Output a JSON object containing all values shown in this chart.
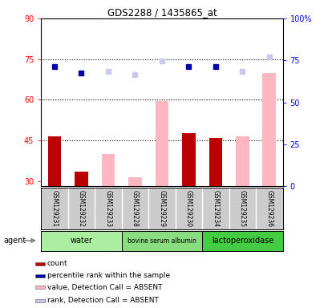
{
  "title": "GDS2288 / 1435865_at",
  "samples": [
    "GSM129231",
    "GSM129232",
    "GSM129233",
    "GSM129228",
    "GSM129229",
    "GSM129230",
    "GSM129234",
    "GSM129235",
    "GSM129236"
  ],
  "agents": [
    {
      "label": "water",
      "color": "#AAEEA0",
      "samples": [
        0,
        1,
        2
      ]
    },
    {
      "label": "bovine serum albumin",
      "color": "#88DD80",
      "samples": [
        3,
        4,
        5
      ]
    },
    {
      "label": "lactoperoxidase",
      "color": "#44CC44",
      "samples": [
        6,
        7,
        8
      ]
    }
  ],
  "count_values": [
    46.5,
    33.5,
    null,
    null,
    null,
    47.5,
    46.0,
    null,
    null
  ],
  "percentile_values": [
    71.5,
    67.5,
    null,
    null,
    null,
    71.5,
    71.5,
    null,
    null
  ],
  "value_absent": [
    null,
    null,
    40.0,
    31.5,
    59.5,
    null,
    null,
    46.5,
    70.0
  ],
  "rank_absent": [
    null,
    null,
    68.5,
    66.5,
    74.5,
    null,
    null,
    68.5,
    77.0
  ],
  "ylim_left": [
    28,
    90
  ],
  "ylim_right": [
    0,
    100
  ],
  "yticks_left": [
    30,
    45,
    60,
    75,
    90
  ],
  "yticks_right": [
    0,
    25,
    50,
    75,
    100
  ],
  "ytick_labels_right": [
    "0",
    "25",
    "50",
    "75",
    "100%"
  ],
  "hlines": [
    45,
    60,
    75
  ],
  "bar_width": 0.5,
  "count_color": "#BB0000",
  "percentile_color": "#0000AA",
  "value_absent_color": "#FFB6C1",
  "rank_absent_color": "#C8C8EE",
  "agent_label": "agent",
  "legend_items": [
    {
      "color": "#BB0000",
      "label": "count"
    },
    {
      "color": "#0000AA",
      "label": "percentile rank within the sample"
    },
    {
      "color": "#FFB6C1",
      "label": "value, Detection Call = ABSENT"
    },
    {
      "color": "#C8C8EE",
      "label": "rank, Detection Call = ABSENT"
    }
  ],
  "background_color": "#FFFFFF",
  "plot_bg_color": "#FFFFFF",
  "sample_area_color": "#CCCCCC"
}
